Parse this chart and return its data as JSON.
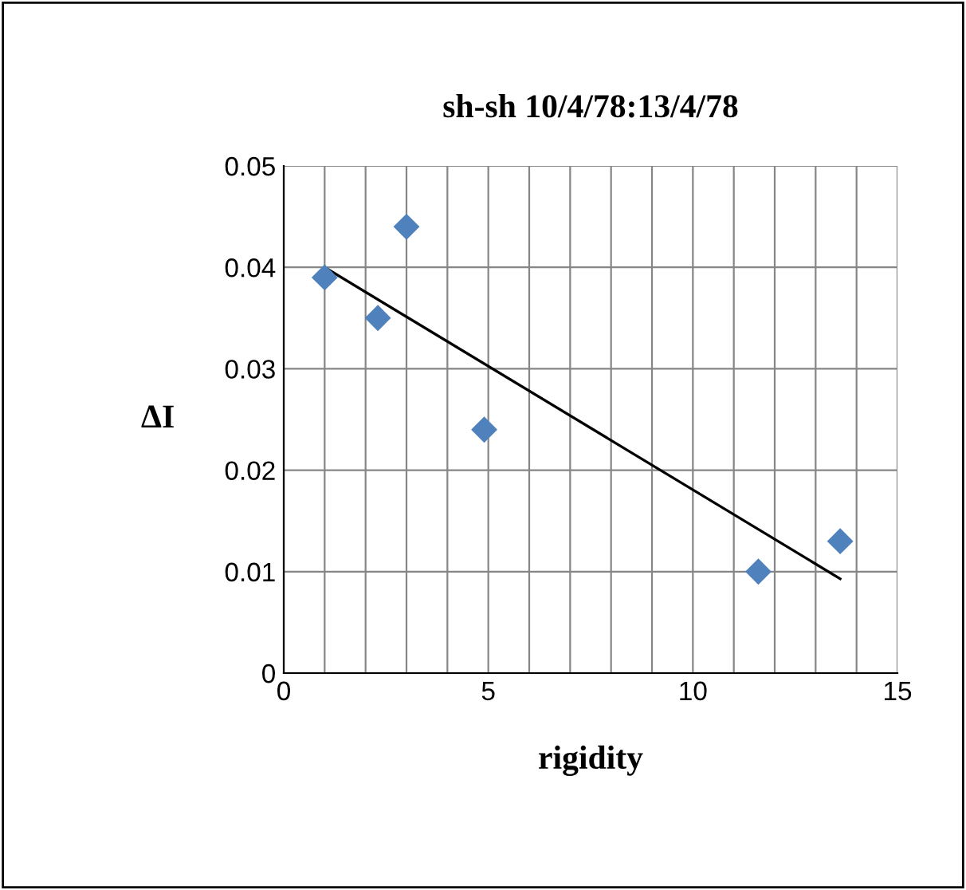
{
  "chart_data": {
    "type": "scatter",
    "title": "sh-sh 10/4/78:13/4/78",
    "xlabel": "rigidity",
    "ylabel": "ΔI",
    "series": [
      {
        "color": "#4f81bd",
        "marker": "diamond",
        "x": [
          1.0,
          2.3,
          3.0,
          4.9,
          11.6,
          13.6
        ],
        "values": [
          0.039,
          0.035,
          0.044,
          0.024,
          0.01,
          0.013
        ]
      },
      {
        "type": "line",
        "color": "#000000",
        "marker": "none",
        "x": [
          1.0,
          13.6
        ],
        "values": [
          0.04,
          0.0093
        ]
      }
    ],
    "xlim": [
      0,
      15
    ],
    "xticks": [
      0,
      5,
      10,
      15
    ],
    "ylim": [
      0,
      0.05
    ],
    "yticks": [
      0,
      0.01,
      0.02,
      0.03,
      0.04,
      0.05
    ],
    "grid": true,
    "legend": false
  }
}
